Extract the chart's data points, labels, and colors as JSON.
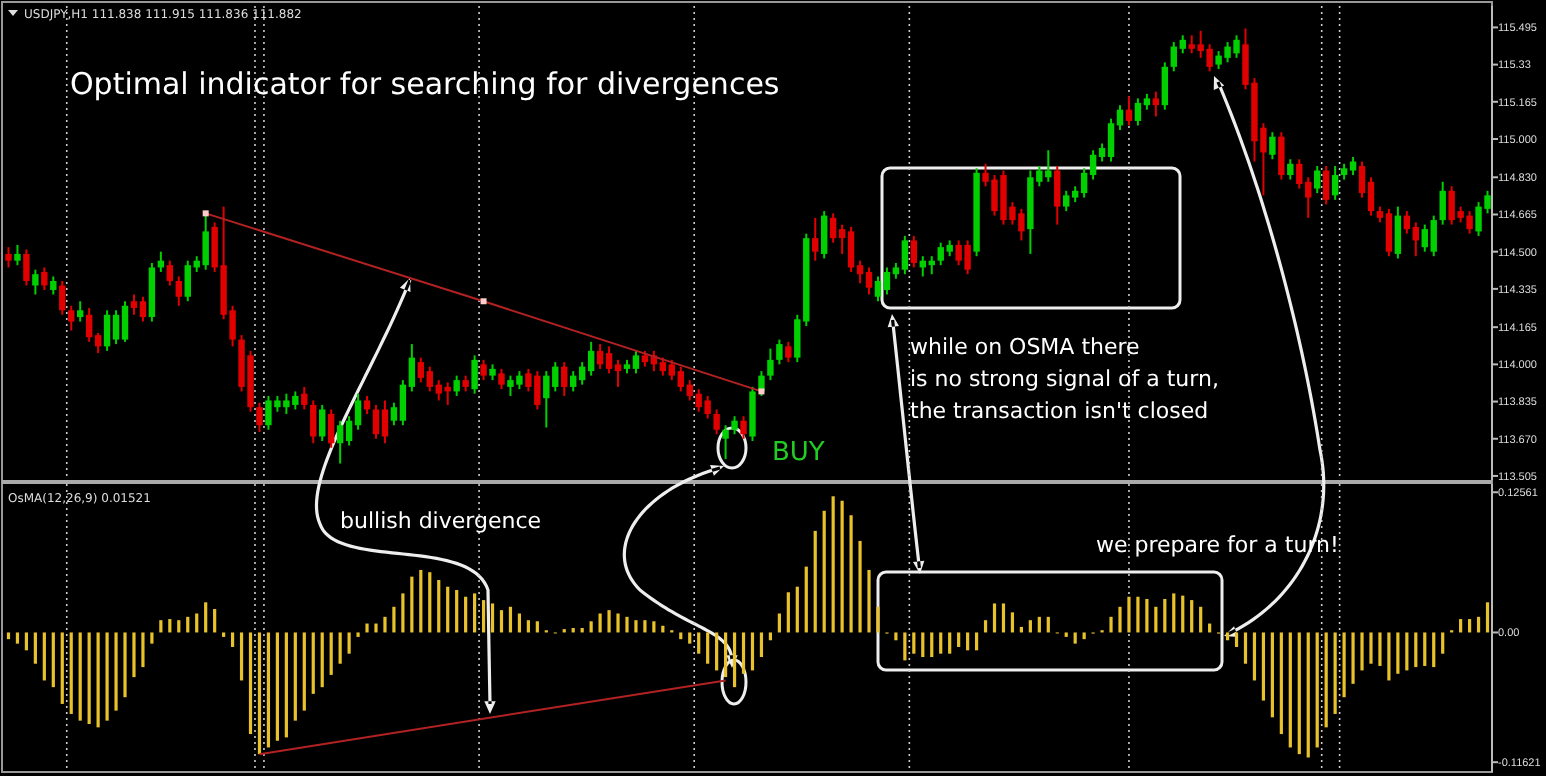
{
  "chart_data": [
    {
      "type": "candlestick",
      "subtitle": "USDJPY,H1 111.838 111.915 111.836 111.882",
      "title": "Optimal indicator for searching for divergences",
      "tick_labels": "y",
      "colors": [
        "#e00000",
        "#00d000",
        "#e00000",
        "#00d000",
        "#e00000",
        "#00d000",
        "#e00000",
        "#e00000",
        "#00d000",
        "#e00000",
        "#e00000",
        "#00d000",
        "#00d000",
        "#00d000",
        "#e00000",
        "#e00000",
        "#00d000",
        "#00d000",
        "#e00000",
        "#e00000",
        "#00d000",
        "#00d000",
        "#00d000",
        "#e00000",
        "#e00000",
        "#e00000",
        "#e00000",
        "#e00000",
        "#e00000",
        "#00d000",
        "#00d000",
        "#00d000",
        "#00d000",
        "#e00000",
        "#e00000",
        "#00d000",
        "#e00000",
        "#00d000",
        "#00d000",
        "#00d000",
        "#e00000",
        "#e00000",
        "#e00000",
        "#00d000",
        "#00d000",
        "#00d000",
        "#e00000",
        "#e00000",
        "#e00000",
        "#e00000",
        "#00d000",
        "#e00000",
        "#00d000",
        "#e00000",
        "#00d000",
        "#e00000",
        "#00d000",
        "#00d000",
        "#e00000",
        "#e00000",
        "#00d000",
        "#00d000",
        "#e00000",
        "#00d000",
        "#00d000",
        "#00d000",
        "#e00000",
        "#e00000",
        "#e00000",
        "#00d000",
        "#00d000",
        "#e00000",
        "#e00000",
        "#e00000",
        "#e00000",
        "#e00000",
        "#e00000",
        "#e00000",
        "#e00000",
        "#e00000",
        "#00d000",
        "#00d000",
        "#e00000",
        "#00d000",
        "#00d000",
        "#00d000",
        "#00d000",
        "#e00000",
        "#00d000",
        "#00d000",
        "#e00000",
        "#00d000",
        "#e00000",
        "#e00000",
        "#e00000",
        "#e00000",
        "#e00000",
        "#00d000",
        "#00d000",
        "#00d000",
        "#00d000",
        "#e00000",
        "#00d000",
        "#00d000",
        "#00d000",
        "#00d000",
        "#e00000",
        "#e00000",
        "#00d000",
        "#e00000",
        "#e00000",
        "#e00000",
        "#e00000",
        "#e00000",
        "#00d000",
        "#00d000",
        "#00d000",
        "#e00000",
        "#00d000",
        "#00d000",
        "#00d000",
        "#00d000",
        "#00d000",
        "#00d000",
        "#00d000",
        "#e00000",
        "#00d000",
        "#00d000",
        "#e00000",
        "#00d000",
        "#00d000",
        "#00d000",
        "#e00000",
        "#e00000",
        "#e00000",
        "#00d000",
        "#00d000",
        "#00d000",
        "#e00000",
        "#e00000",
        "#e00000",
        "#00d000",
        "#e00000",
        "#00d000",
        "#e00000",
        "#e00000",
        "#00d000",
        "#e00000",
        "#00d000",
        "#00d000",
        "#00d000",
        "#e00000",
        "#e00000",
        "#e00000",
        "#e00000",
        "#00d000",
        "#e00000",
        "#e00000",
        "#00d000",
        "#00d000",
        "#00d000",
        "#e00000",
        "#e00000",
        "#e00000",
        "#00d000",
        "#00d000"
      ],
      "categories": [
        null,
        null,
        null,
        null,
        null,
        null,
        null,
        null,
        null,
        null,
        null,
        null,
        null,
        null,
        null,
        null,
        null,
        null,
        null,
        null,
        null,
        null,
        null,
        null,
        null,
        null,
        null,
        null,
        null,
        null,
        null,
        null,
        null,
        null,
        null,
        null,
        null,
        null,
        null,
        null,
        null,
        null,
        null,
        null,
        null,
        null,
        null,
        null,
        null,
        null,
        null,
        null,
        null,
        null,
        null,
        null,
        null,
        null,
        null,
        null,
        null,
        null,
        null,
        null,
        null,
        null,
        null,
        null,
        null,
        null,
        null,
        null,
        null,
        null,
        null,
        null,
        null,
        null,
        null,
        null,
        null,
        null,
        null,
        null,
        null,
        null,
        null,
        null,
        null,
        null,
        null,
        null,
        null,
        null,
        null,
        null,
        null,
        null,
        null,
        null,
        null,
        null,
        null,
        null,
        null,
        null,
        null,
        null,
        null,
        null,
        null,
        null,
        null,
        null,
        null,
        null,
        null,
        null,
        null,
        null,
        null,
        null,
        null,
        null,
        null,
        null,
        null,
        null,
        null,
        null,
        null,
        null,
        null,
        null,
        null,
        null,
        null,
        null,
        null,
        null,
        null,
        null,
        null,
        null,
        null,
        null,
        null,
        null,
        null,
        null,
        null,
        null,
        null,
        null,
        null,
        null,
        null,
        null,
        null,
        null,
        null,
        null,
        null,
        null,
        null,
        null
      ],
      "ohlc": [
        [
          114.49,
          114.52,
          114.43,
          114.46
        ],
        [
          114.46,
          114.53,
          114.44,
          114.49
        ],
        [
          114.49,
          114.51,
          114.35,
          114.37
        ],
        [
          114.35,
          114.42,
          114.31,
          114.4
        ],
        [
          114.41,
          114.43,
          114.33,
          114.35
        ],
        [
          114.33,
          114.39,
          114.31,
          114.37
        ],
        [
          114.35,
          114.37,
          114.22,
          114.24
        ],
        [
          114.24,
          114.26,
          114.15,
          114.19
        ],
        [
          114.21,
          114.28,
          114.19,
          114.24
        ],
        [
          114.22,
          114.25,
          114.1,
          114.12
        ],
        [
          114.13,
          114.14,
          114.05,
          114.08
        ],
        [
          114.08,
          114.24,
          114.06,
          114.22
        ],
        [
          114.11,
          114.24,
          114.09,
          114.22
        ],
        [
          114.11,
          114.28,
          114.1,
          114.26
        ],
        [
          114.28,
          114.31,
          114.22,
          114.25
        ],
        [
          114.28,
          114.3,
          114.19,
          114.21
        ],
        [
          114.21,
          114.45,
          114.19,
          114.43
        ],
        [
          114.43,
          114.5,
          114.41,
          114.46
        ],
        [
          114.44,
          114.46,
          114.35,
          114.37
        ],
        [
          114.37,
          114.39,
          114.26,
          114.3
        ],
        [
          114.3,
          114.46,
          114.28,
          114.44
        ],
        [
          114.43,
          114.48,
          114.41,
          114.46
        ],
        [
          114.44,
          114.67,
          114.42,
          114.59
        ],
        [
          114.61,
          114.63,
          114.41,
          114.43
        ],
        [
          114.44,
          114.7,
          114.2,
          114.22
        ],
        [
          114.24,
          114.26,
          114.08,
          114.11
        ],
        [
          114.11,
          114.13,
          113.88,
          113.9
        ],
        [
          114.04,
          114.06,
          113.79,
          113.81
        ],
        [
          113.81,
          113.83,
          113.7,
          113.73
        ],
        [
          113.73,
          113.86,
          113.71,
          113.84
        ],
        [
          113.81,
          113.86,
          113.79,
          113.84
        ],
        [
          113.81,
          113.87,
          113.78,
          113.84
        ],
        [
          113.82,
          113.88,
          113.8,
          113.86
        ],
        [
          113.87,
          113.9,
          113.8,
          113.82
        ],
        [
          113.82,
          113.84,
          113.65,
          113.68
        ],
        [
          113.68,
          113.82,
          113.66,
          113.8
        ],
        [
          113.78,
          113.8,
          113.63,
          113.65
        ],
        [
          113.65,
          113.75,
          113.56,
          113.73
        ],
        [
          113.66,
          113.77,
          113.64,
          113.75
        ],
        [
          113.73,
          113.87,
          113.71,
          113.84
        ],
        [
          113.84,
          113.86,
          113.78,
          113.8
        ],
        [
          113.8,
          113.82,
          113.67,
          113.69
        ],
        [
          113.8,
          113.84,
          113.65,
          113.68
        ],
        [
          113.75,
          113.83,
          113.73,
          113.81
        ],
        [
          113.75,
          113.93,
          113.73,
          113.91
        ],
        [
          113.9,
          114.09,
          113.88,
          114.03
        ],
        [
          114.01,
          114.03,
          113.92,
          113.94
        ],
        [
          113.97,
          113.99,
          113.88,
          113.9
        ],
        [
          113.91,
          113.93,
          113.84,
          113.87
        ],
        [
          113.9,
          113.92,
          113.82,
          113.88
        ],
        [
          113.88,
          113.95,
          113.86,
          113.93
        ],
        [
          113.93,
          113.95,
          113.88,
          113.9
        ],
        [
          113.89,
          114.04,
          113.87,
          114.02
        ],
        [
          114.0,
          114.02,
          113.93,
          113.95
        ],
        [
          113.95,
          114.0,
          113.93,
          113.98
        ],
        [
          113.96,
          113.98,
          113.89,
          113.91
        ],
        [
          113.9,
          113.95,
          113.86,
          113.93
        ],
        [
          113.91,
          113.97,
          113.89,
          113.95
        ],
        [
          113.96,
          113.98,
          113.88,
          113.9
        ],
        [
          113.95,
          113.97,
          113.8,
          113.82
        ],
        [
          113.85,
          113.97,
          113.72,
          113.95
        ],
        [
          113.9,
          114.01,
          113.88,
          113.99
        ],
        [
          113.99,
          114.01,
          113.86,
          113.9
        ],
        [
          113.9,
          113.97,
          113.88,
          113.95
        ],
        [
          113.93,
          114.01,
          113.91,
          113.99
        ],
        [
          113.97,
          114.1,
          113.95,
          114.06
        ],
        [
          114.06,
          114.09,
          113.98,
          114.0
        ],
        [
          114.05,
          114.08,
          113.96,
          113.98
        ],
        [
          114.0,
          114.02,
          113.9,
          113.97
        ],
        [
          113.98,
          114.02,
          113.96,
          114.0
        ],
        [
          113.98,
          114.06,
          113.96,
          114.04
        ],
        [
          114.04,
          114.06,
          113.99,
          114.01
        ],
        [
          114.04,
          114.06,
          113.97,
          114.0
        ],
        [
          114.01,
          114.03,
          113.95,
          113.97
        ],
        [
          114.0,
          114.02,
          113.93,
          113.95
        ],
        [
          113.97,
          113.99,
          113.88,
          113.9
        ],
        [
          113.91,
          113.93,
          113.84,
          113.86
        ],
        [
          113.87,
          113.89,
          113.79,
          113.81
        ],
        [
          113.84,
          113.86,
          113.76,
          113.78
        ],
        [
          113.78,
          113.8,
          113.69,
          113.71
        ],
        [
          113.67,
          113.73,
          113.58,
          113.71
        ],
        [
          113.71,
          113.77,
          113.69,
          113.75
        ],
        [
          113.75,
          113.77,
          113.67,
          113.69
        ],
        [
          113.68,
          113.9,
          113.66,
          113.88
        ],
        [
          113.88,
          113.97,
          113.86,
          113.95
        ],
        [
          113.95,
          114.07,
          113.93,
          114.02
        ],
        [
          114.02,
          114.11,
          114.0,
          114.09
        ],
        [
          114.08,
          114.1,
          114.01,
          114.03
        ],
        [
          114.03,
          114.22,
          114.01,
          114.2
        ],
        [
          114.19,
          114.58,
          114.17,
          114.56
        ],
        [
          114.56,
          114.65,
          114.46,
          114.5
        ],
        [
          114.49,
          114.68,
          114.47,
          114.66
        ],
        [
          114.65,
          114.67,
          114.54,
          114.56
        ],
        [
          114.6,
          114.62,
          114.49,
          114.56
        ],
        [
          114.59,
          114.61,
          114.41,
          114.43
        ],
        [
          114.44,
          114.46,
          114.36,
          114.4
        ],
        [
          114.41,
          114.43,
          114.31,
          114.34
        ],
        [
          114.3,
          114.39,
          114.28,
          114.37
        ],
        [
          114.33,
          114.43,
          114.31,
          114.41
        ],
        [
          114.4,
          114.45,
          114.38,
          114.43
        ],
        [
          114.42,
          114.57,
          114.4,
          114.55
        ],
        [
          114.55,
          114.57,
          114.43,
          114.45
        ],
        [
          114.43,
          114.48,
          114.39,
          114.46
        ],
        [
          114.44,
          114.48,
          114.4,
          114.46
        ],
        [
          114.46,
          114.54,
          114.44,
          114.52
        ],
        [
          114.5,
          114.55,
          114.48,
          114.53
        ],
        [
          114.53,
          114.55,
          114.44,
          114.46
        ],
        [
          114.53,
          114.55,
          114.4,
          114.42
        ],
        [
          114.5,
          114.87,
          114.48,
          114.85
        ],
        [
          114.85,
          114.89,
          114.79,
          114.81
        ],
        [
          114.82,
          114.84,
          114.66,
          114.68
        ],
        [
          114.84,
          114.86,
          114.62,
          114.64
        ],
        [
          114.7,
          114.72,
          114.62,
          114.64
        ],
        [
          114.67,
          114.69,
          114.55,
          114.59
        ],
        [
          114.6,
          114.86,
          114.49,
          114.83
        ],
        [
          114.81,
          114.88,
          114.79,
          114.86
        ],
        [
          114.83,
          114.95,
          114.81,
          114.86
        ],
        [
          114.86,
          114.88,
          114.62,
          114.7
        ],
        [
          114.7,
          114.77,
          114.68,
          114.75
        ],
        [
          114.74,
          114.79,
          114.72,
          114.77
        ],
        [
          114.76,
          114.87,
          114.74,
          114.85
        ],
        [
          114.84,
          114.95,
          114.82,
          114.93
        ],
        [
          114.92,
          114.98,
          114.9,
          114.96
        ],
        [
          114.92,
          115.09,
          114.9,
          115.07
        ],
        [
          115.06,
          115.15,
          115.04,
          115.13
        ],
        [
          115.13,
          115.19,
          115.06,
          115.08
        ],
        [
          115.08,
          115.18,
          115.06,
          115.16
        ],
        [
          115.15,
          115.2,
          115.13,
          115.18
        ],
        [
          115.18,
          115.21,
          115.1,
          115.15
        ],
        [
          115.15,
          115.34,
          115.13,
          115.32
        ],
        [
          115.32,
          115.43,
          115.3,
          115.41
        ],
        [
          115.4,
          115.46,
          115.38,
          115.44
        ],
        [
          115.42,
          115.46,
          115.38,
          115.4
        ],
        [
          115.42,
          115.48,
          115.36,
          115.39
        ],
        [
          115.4,
          115.42,
          115.3,
          115.32
        ],
        [
          115.33,
          115.39,
          115.31,
          115.37
        ],
        [
          115.36,
          115.43,
          115.34,
          115.41
        ],
        [
          115.38,
          115.46,
          115.36,
          115.44
        ],
        [
          115.42,
          115.49,
          115.22,
          115.24
        ],
        [
          115.25,
          115.27,
          114.9,
          114.99
        ],
        [
          115.05,
          115.07,
          114.75,
          114.94
        ],
        [
          114.93,
          115.03,
          114.91,
          115.01
        ],
        [
          115.01,
          115.03,
          114.82,
          114.84
        ],
        [
          114.84,
          114.91,
          114.82,
          114.89
        ],
        [
          114.89,
          114.91,
          114.78,
          114.8
        ],
        [
          114.81,
          114.83,
          114.65,
          114.74
        ],
        [
          114.78,
          114.88,
          114.76,
          114.86
        ],
        [
          114.86,
          114.88,
          114.71,
          114.73
        ],
        [
          114.75,
          114.88,
          114.73,
          114.84
        ],
        [
          114.84,
          114.89,
          114.82,
          114.87
        ],
        [
          114.86,
          114.92,
          114.84,
          114.9
        ],
        [
          114.88,
          114.9,
          114.74,
          114.76
        ],
        [
          114.81,
          114.83,
          114.66,
          114.68
        ],
        [
          114.68,
          114.7,
          114.63,
          114.65
        ],
        [
          114.67,
          114.69,
          114.48,
          114.5
        ],
        [
          114.49,
          114.7,
          114.47,
          114.66
        ],
        [
          114.66,
          114.68,
          114.58,
          114.6
        ],
        [
          114.61,
          114.63,
          114.48,
          114.55
        ],
        [
          114.52,
          114.62,
          114.5,
          114.6
        ],
        [
          114.5,
          114.66,
          114.48,
          114.64
        ],
        [
          114.64,
          114.81,
          114.62,
          114.77
        ],
        [
          114.77,
          114.79,
          114.62,
          114.64
        ],
        [
          114.68,
          114.7,
          114.63,
          114.65
        ],
        [
          114.66,
          114.68,
          114.58,
          114.6
        ],
        [
          114.59,
          114.72,
          114.57,
          114.7
        ],
        [
          114.69,
          114.77,
          114.67,
          114.75
        ]
      ],
      "series": [
        {
          "type": "line",
          "color": "#b22222",
          "marker": "square",
          "values": [
            null,
            null,
            null,
            null,
            null,
            null,
            null,
            null,
            null,
            null,
            null,
            null,
            null,
            null,
            null,
            null,
            null,
            null,
            null,
            null,
            null,
            null,
            114.67,
            null,
            null,
            null,
            null,
            null,
            null,
            null,
            null,
            null,
            null,
            null,
            null,
            null,
            null,
            null,
            null,
            null,
            null,
            null,
            null,
            null,
            null,
            null,
            null,
            null,
            null,
            null,
            null,
            null,
            null,
            114.28,
            null,
            null,
            null,
            null,
            null,
            null,
            null,
            null,
            null,
            null,
            null,
            null,
            null,
            null,
            null,
            null,
            null,
            null,
            null,
            null,
            null,
            null,
            null,
            null,
            null,
            null,
            null,
            null,
            null,
            null,
            113.88,
            null,
            null,
            null,
            null,
            null,
            null,
            null,
            null,
            null,
            null,
            null,
            null,
            null,
            null,
            null,
            null,
            null,
            null,
            null,
            null,
            null,
            null,
            null,
            null,
            null,
            null,
            null,
            null,
            null,
            null,
            null,
            null,
            null,
            null,
            null,
            null,
            null,
            null,
            null,
            null,
            null,
            null,
            null,
            null,
            null,
            null,
            null,
            null,
            null,
            null,
            null,
            null,
            null,
            null,
            null,
            null,
            null,
            null,
            null,
            null,
            null,
            null,
            null,
            null,
            null,
            null,
            null,
            null,
            null,
            null,
            null,
            null,
            null,
            null,
            null,
            null,
            null,
            null,
            null,
            null,
            null
          ]
        }
      ],
      "ylim": [
        113.487,
        115.59
      ],
      "yticks": [
        115.495,
        115.33,
        115.165,
        {
          "value": 115,
          "label": "115.000"
        },
        {
          "value": 114.83,
          "label": "114.830"
        },
        114.665,
        {
          "value": 114.5,
          "label": "114.500"
        },
        114.335,
        114.165,
        {
          "value": 114,
          "label": "114.000"
        },
        113.835,
        {
          "value": 113.67,
          "label": "113.670"
        },
        113.505
      ],
      "annotations": [
        "BUY",
        "while on OSMA there\nis no strong signal of a turn,\nthe transaction isn't closed"
      ]
    },
    {
      "type": "bar",
      "title": "OsMA(12,26,9) 0.01521",
      "tick_labels": "y",
      "categories": [
        null,
        null,
        null,
        null,
        null,
        null,
        null,
        null,
        null,
        null,
        null,
        null,
        null,
        null,
        null,
        null,
        null,
        null,
        null,
        null,
        null,
        null,
        null,
        null,
        null,
        null,
        null,
        null,
        null,
        null,
        null,
        null,
        null,
        null,
        null,
        null,
        null,
        null,
        null,
        null,
        null,
        null,
        null,
        null,
        null,
        null,
        null,
        null,
        null,
        null,
        null,
        null,
        null,
        null,
        null,
        null,
        null,
        null,
        null,
        null,
        null,
        null,
        null,
        null,
        null,
        null,
        null,
        null,
        null,
        null,
        null,
        null,
        null,
        null,
        null,
        null,
        null,
        null,
        null,
        null,
        null,
        null,
        null,
        null,
        null,
        null,
        null,
        null,
        null,
        null,
        null,
        null,
        null,
        null,
        null,
        null,
        null,
        null,
        null,
        null,
        null,
        null,
        null,
        null,
        null,
        null,
        null,
        null,
        null,
        null,
        null,
        null,
        null,
        null,
        null,
        null,
        null,
        null,
        null,
        null,
        null,
        null,
        null,
        null,
        null,
        null,
        null,
        null,
        null,
        null,
        null,
        null,
        null,
        null,
        null,
        null,
        null,
        null,
        null,
        null,
        null,
        null,
        null,
        null,
        null,
        null,
        null,
        null,
        null,
        null,
        null,
        null,
        null,
        null,
        null,
        null,
        null,
        null,
        null,
        null,
        null,
        null,
        null,
        null,
        null,
        null
      ],
      "series": [
        {
          "type": "bar",
          "color": "#e8c22a",
          "values": [
            -0.006,
            -0.01,
            -0.016,
            -0.028,
            -0.043,
            -0.049,
            -0.064,
            -0.073,
            -0.079,
            -0.082,
            -0.085,
            -0.079,
            -0.07,
            -0.058,
            -0.04,
            -0.031,
            -0.01,
            0.011,
            0.012,
            0.011,
            0.014,
            0.017,
            0.027,
            0.021,
            -0.004,
            -0.013,
            -0.043,
            -0.091,
            -0.109,
            -0.103,
            -0.097,
            -0.094,
            -0.079,
            -0.07,
            -0.055,
            -0.049,
            -0.038,
            -0.028,
            -0.019,
            -0.004,
            0.008,
            0.008,
            0.014,
            0.023,
            0.035,
            0.05,
            0.056,
            0.054,
            0.047,
            0.041,
            0.038,
            0.032,
            0.035,
            0.029,
            0.026,
            0.02,
            0.023,
            0.017,
            0.011,
            0.01,
            0.002,
            0,
            0.003,
            0.004,
            0.004,
            0.01,
            0.017,
            0.02,
            0.017,
            0.014,
            0.011,
            0.011,
            0.01,
            0.006,
            0.002,
            -0.006,
            -0.01,
            -0.019,
            -0.028,
            -0.034,
            -0.04,
            -0.049,
            -0.037,
            -0.034,
            -0.022,
            -0.007,
            0.017,
            0.036,
            0.041,
            0.059,
            0.091,
            0.109,
            0.122,
            0.118,
            0.105,
            0.082,
            0.056,
            0.023,
            -0.001,
            -0.007,
            -0.025,
            -0.019,
            -0.022,
            -0.022,
            -0.019,
            -0.019,
            -0.013,
            -0.016,
            -0.016,
            0.011,
            0.026,
            0.026,
            0.018,
            0.005,
            0.011,
            0.014,
            0.014,
            0,
            -0.004,
            -0.01,
            -0.006,
            -0.001,
            0.002,
            0.014,
            0.023,
            0.032,
            0.032,
            0.03,
            0.023,
            0.03,
            0.035,
            0.033,
            0.029,
            0.023,
            0.008,
            -0.001,
            -0.007,
            -0.013,
            -0.028,
            -0.043,
            -0.061,
            -0.076,
            -0.091,
            -0.103,
            -0.109,
            -0.112,
            -0.103,
            -0.085,
            -0.073,
            -0.058,
            -0.046,
            -0.034,
            -0.028,
            -0.03,
            -0.043,
            -0.037,
            -0.034,
            -0.031,
            -0.03,
            -0.031,
            -0.019,
            0.002,
            0.012,
            0.012,
            0.014,
            0.027
          ]
        },
        {
          "type": "line",
          "color": "#b22222",
          "values": [
            null,
            null,
            null,
            null,
            null,
            null,
            null,
            null,
            null,
            null,
            null,
            null,
            null,
            null,
            null,
            null,
            null,
            null,
            null,
            null,
            null,
            null,
            null,
            null,
            null,
            null,
            null,
            null,
            -0.109,
            null,
            null,
            null,
            null,
            null,
            null,
            null,
            null,
            null,
            null,
            null,
            null,
            null,
            null,
            null,
            null,
            null,
            null,
            null,
            null,
            null,
            null,
            null,
            null,
            null,
            null,
            null,
            null,
            null,
            null,
            null,
            null,
            null,
            null,
            null,
            null,
            null,
            null,
            null,
            null,
            null,
            null,
            null,
            null,
            null,
            null,
            null,
            null,
            null,
            null,
            null,
            -0.043,
            null,
            null,
            null,
            null,
            null,
            null,
            null,
            null,
            null,
            null,
            null,
            null,
            null,
            null,
            null,
            null,
            null,
            null,
            null,
            null,
            null,
            null,
            null,
            null,
            null,
            null,
            null,
            null,
            null,
            null,
            null,
            null,
            null,
            null,
            null,
            null,
            null,
            null,
            null,
            null,
            null,
            null,
            null,
            null,
            null,
            null,
            null,
            null,
            null,
            null,
            null,
            null,
            null,
            null,
            null,
            null,
            null,
            null,
            null,
            null,
            null,
            null,
            null,
            null,
            null,
            null,
            null,
            null,
            null,
            null,
            null,
            null,
            null,
            null,
            null,
            null,
            null,
            null,
            null,
            null,
            null,
            null,
            null,
            null,
            null
          ]
        }
      ],
      "ylim": [
        -0.125,
        0.133
      ],
      "yticks": [
        0.12561,
        {
          "value": 0,
          "label": "0.00"
        },
        -0.11621
      ],
      "annotations": [
        "bullish divergence",
        "we prepare for a turn!"
      ]
    }
  ]
}
